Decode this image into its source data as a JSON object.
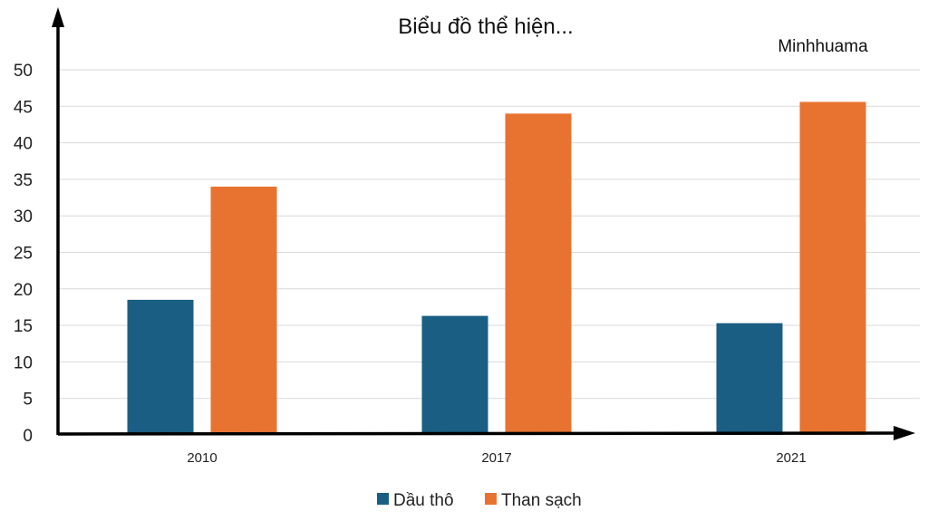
{
  "chart_data": {
    "type": "bar",
    "title": "Biểu đồ thể hiện...",
    "watermark": "Minhhuama",
    "categories": [
      "2010",
      "2017",
      "2021"
    ],
    "series": [
      {
        "name": "Dầu thô",
        "color": "#1a5e83",
        "values": [
          18.5,
          16.3,
          15.3
        ]
      },
      {
        "name": "Than sạch",
        "color": "#e87331",
        "values": [
          34.0,
          44.0,
          45.6
        ]
      }
    ],
    "ylim": [
      0,
      50
    ],
    "yticks": [
      0,
      5,
      10,
      15,
      20,
      25,
      30,
      35,
      40,
      45,
      50
    ],
    "grid": true,
    "legend_position": "bottom"
  }
}
